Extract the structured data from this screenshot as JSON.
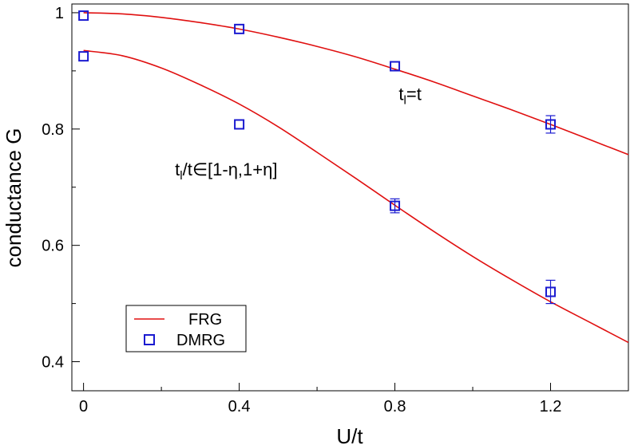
{
  "chart_data": {
    "type": "line",
    "title": "",
    "xlabel": "U/t",
    "ylabel": "conductance G",
    "xlim": [
      -0.03,
      1.4
    ],
    "ylim": [
      0.35,
      1.015
    ],
    "x_ticks": [
      {
        "value": 0,
        "label": "0"
      },
      {
        "value": 0.4,
        "label": "0.4"
      },
      {
        "value": 0.8,
        "label": "0.8"
      },
      {
        "value": 1.2,
        "label": "1.2"
      }
    ],
    "x_minor_ticks": [
      0.2,
      0.6,
      1.0
    ],
    "y_ticks": [
      {
        "value": 0.4,
        "label": "0.4"
      },
      {
        "value": 0.6,
        "label": "0.6"
      },
      {
        "value": 0.8,
        "label": "0.8"
      },
      {
        "value": 1.0,
        "label": "1"
      }
    ],
    "y_minor_ticks": [
      0.5,
      0.7,
      0.9
    ],
    "grid": false,
    "legend": {
      "placement": "lower-left",
      "entries": [
        {
          "label": "FRG",
          "marker": "line",
          "color": "#e01010"
        },
        {
          "label": "DMRG",
          "marker": "square",
          "color": "#1a1ad0"
        }
      ]
    },
    "series": [
      {
        "name": "FRG",
        "group": "uniform",
        "style": "line",
        "color": "#e01010",
        "x": [
          0,
          0.1,
          0.2,
          0.3,
          0.4,
          0.5,
          0.6,
          0.7,
          0.8,
          0.9,
          1.0,
          1.1,
          1.2,
          1.3,
          1.4
        ],
        "y": [
          1.0,
          0.998,
          0.992,
          0.983,
          0.972,
          0.958,
          0.942,
          0.924,
          0.903,
          0.881,
          0.857,
          0.833,
          0.808,
          0.782,
          0.756
        ]
      },
      {
        "name": "FRG",
        "group": "disordered",
        "style": "line",
        "color": "#e01010",
        "x": [
          0,
          0.1,
          0.2,
          0.3,
          0.4,
          0.5,
          0.6,
          0.7,
          0.8,
          0.9,
          1.0,
          1.1,
          1.2,
          1.3,
          1.4
        ],
        "y": [
          0.935,
          0.926,
          0.905,
          0.876,
          0.843,
          0.804,
          0.76,
          0.715,
          0.669,
          0.624,
          0.581,
          0.541,
          0.503,
          0.468,
          0.433
        ]
      },
      {
        "name": "DMRG",
        "group": "uniform",
        "style": "square",
        "color": "#1a1ad0",
        "x": [
          0,
          0.4,
          0.8,
          1.2
        ],
        "y": [
          0.995,
          0.972,
          0.908,
          0.808
        ],
        "error": [
          0,
          0,
          0,
          0.015
        ]
      },
      {
        "name": "DMRG",
        "group": "disordered",
        "style": "square",
        "color": "#1a1ad0",
        "x": [
          0,
          0.4,
          0.8,
          1.2
        ],
        "y": [
          0.925,
          0.808,
          0.668,
          0.52
        ],
        "error": [
          0,
          0,
          0.012,
          0.02
        ]
      }
    ],
    "annotations": [
      {
        "text": "t",
        "sub": "l",
        "rest": "=t",
        "x": 0.81,
        "y": 0.85
      },
      {
        "text": "t",
        "sub": "l",
        "rest": "/t∈[1-η,1+η]",
        "x": 0.235,
        "y": 0.72
      }
    ]
  }
}
